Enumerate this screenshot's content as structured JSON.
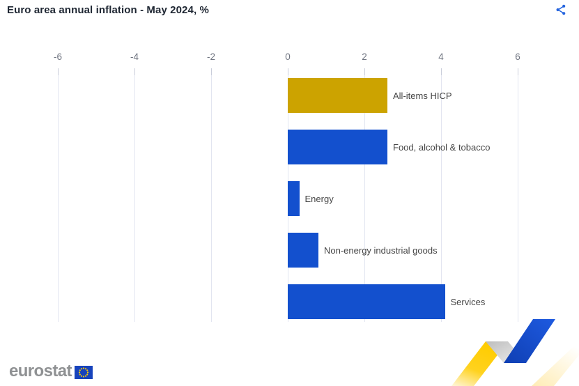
{
  "header": {
    "title": "Euro area annual inflation - May 2024, %"
  },
  "chart_data": {
    "type": "bar",
    "orientation": "horizontal",
    "title": "Euro area annual inflation - May 2024, %",
    "categories": [
      "All-items HICP",
      "Food, alcohol & tobacco",
      "Energy",
      "Non-energy industrial goods",
      "Services"
    ],
    "values": [
      2.6,
      2.6,
      0.3,
      0.8,
      4.1
    ],
    "unit": "%",
    "axis_ticks": [
      -6,
      -4,
      -2,
      0,
      2,
      4,
      6
    ],
    "xlim": [
      -7.5,
      7.6
    ],
    "grid": true,
    "legend": "none",
    "bar_colors": [
      "#CCA300",
      "#1350CE",
      "#1350CE",
      "#1350CE",
      "#1350CE"
    ]
  },
  "footer": {
    "logo_text": "eurostat"
  },
  "icons": {
    "share": "share-icon",
    "eu_flag": "eu-flag",
    "ribbon": "eurostat-ribbon-graphic"
  },
  "colors": {
    "accent_blue": "#1350CE",
    "gold": "#CCA300",
    "share_icon": "#2363DE",
    "title_text": "#1F2733",
    "axis_label": "#6F7480",
    "bar_label": "#454545",
    "gridline": "#E2E5F0",
    "logo_gray": "#8F9193",
    "flag_blue": "#1743BC",
    "star_yellow": "#FFCC00",
    "ribbon_yellow": "#FFD21E",
    "ribbon_gray": "#C4C4C4",
    "ribbon_blue": "#1148C4"
  }
}
